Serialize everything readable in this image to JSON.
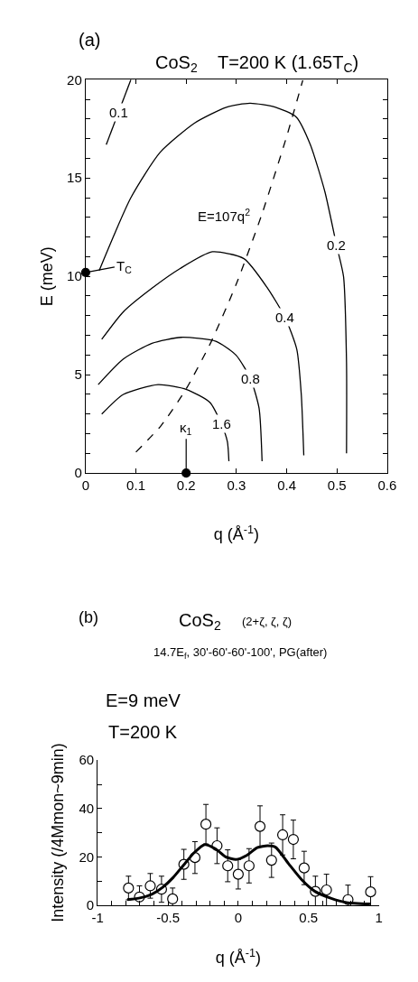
{
  "chart_data": [
    {
      "type": "line",
      "title": "CoS$_{2}$    T=200 K (1.65T$_{C}$)",
      "xlabel": "q (Å$^{-1}$)",
      "ylabel": "E (meV)",
      "annotations": [
        "(a)",
        {
          "text": "T$_{C}$",
          "x": 0,
          "y": 10.2
        },
        {
          "text": "κ$_{1}$",
          "x": 0.2,
          "y": 0
        }
      ],
      "series": [
        {
          "name": "0.1",
          "color": "#000000",
          "x": [
            0.041,
            0.09
          ],
          "values": [
            16.7,
            20.0
          ]
        },
        {
          "name": "0.2",
          "color": "#000000",
          "x": [
            0.027,
            0.09,
            0.148,
            0.217,
            0.28,
            0.327,
            0.378,
            0.419,
            0.447,
            0.476,
            0.499,
            0.513,
            0.519,
            0.519
          ],
          "values": [
            10.3,
            14.0,
            16.3,
            17.8,
            18.6,
            18.8,
            18.6,
            18.1,
            16.7,
            14.3,
            11.6,
            10.0,
            5.6,
            1.0
          ]
        },
        {
          "name": "0.4",
          "color": "#000000",
          "x": [
            0.032,
            0.075,
            0.132,
            0.188,
            0.252,
            0.315,
            0.362,
            0.397,
            0.42,
            0.429,
            0.434
          ],
          "values": [
            6.8,
            8.2,
            9.4,
            10.4,
            11.25,
            10.9,
            9.4,
            7.9,
            6.3,
            4.0,
            0.9
          ]
        },
        {
          "name": "0.8",
          "color": "#000000",
          "x": [
            0.025,
            0.075,
            0.132,
            0.19,
            0.259,
            0.299,
            0.328,
            0.345,
            0.351
          ],
          "values": [
            4.5,
            5.8,
            6.6,
            6.9,
            6.7,
            6.0,
            4.8,
            3.3,
            0.6
          ]
        },
        {
          "name": "1.6",
          "color": "#000000",
          "x": [
            0.032,
            0.075,
            0.144,
            0.201,
            0.247,
            0.27,
            0.282,
            0.285
          ],
          "values": [
            3.0,
            4.0,
            4.5,
            4.25,
            3.6,
            2.5,
            1.6,
            0.6
          ]
        },
        {
          "name": "E=107q$^{2}$",
          "color": "#000000",
          "line_style": "dashed",
          "x": [
            0.1,
            0.15,
            0.2,
            0.25,
            0.3,
            0.35,
            0.4,
            0.432
          ],
          "values": [
            1.07,
            2.41,
            4.28,
            6.69,
            9.63,
            13.11,
            17.12,
            19.97
          ]
        },
        {
          "type": "scatter",
          "marker": "circle",
          "color": "#000000",
          "x": [
            0,
            0.2
          ],
          "values": [
            10.2,
            0
          ]
        }
      ],
      "xlim": [
        0,
        0.6
      ],
      "xticks": [
        0,
        0.1,
        0.2,
        0.3,
        0.4,
        0.5,
        0.6
      ],
      "ylim": [
        0,
        20
      ],
      "yticks": [
        0,
        {
          "value": 1,
          "label": null
        },
        {
          "value": 2,
          "label": null
        },
        {
          "value": 3,
          "label": null
        },
        {
          "value": 4,
          "label": null
        },
        5,
        {
          "value": 6,
          "label": null
        },
        {
          "value": 7,
          "label": null
        },
        {
          "value": 8,
          "label": null
        },
        {
          "value": 9,
          "label": null
        },
        10,
        {
          "value": 11,
          "label": null
        },
        {
          "value": 12,
          "label": null
        },
        {
          "value": 13,
          "label": null
        },
        {
          "value": 14,
          "label": null
        },
        15,
        {
          "value": 16,
          "label": null
        },
        {
          "value": 17,
          "label": null
        },
        {
          "value": 18,
          "label": null
        },
        {
          "value": 19,
          "label": null
        },
        20
      ],
      "line_style": "solid",
      "marker": "none"
    },
    {
      "type": "scatter",
      "title": "CoS$_{2}$",
      "subtitle": "14.7E$_{f}$, 30'-60'-60'-100', PG(after)",
      "xlabel": "q (Å$^{-1}$)",
      "ylabel": "Intensity (/4Mmon~9min)",
      "annotations": [
        "(b)",
        "(2+ζ, ζ, ζ)",
        "E=9 meV",
        "T=200 K"
      ],
      "series": [
        {
          "color": "#000000",
          "marker": "circle",
          "x": [
            -0.781,
            -0.703,
            -0.626,
            -0.546,
            -0.467,
            -0.387,
            -0.308,
            -0.23,
            -0.151,
            -0.075,
            0,
            0.077,
            0.155,
            0.237,
            0.316,
            0.392,
            0.469,
            0.549,
            0.628,
            0.781,
            0.942
          ],
          "values": [
            7.1,
            3.4,
            8.0,
            6.6,
            2.6,
            16.9,
            19.7,
            33.5,
            24.6,
            16.3,
            12.8,
            16.3,
            32.6,
            18.6,
            29.1,
            27.2,
            15.4,
            5.7,
            6.3,
            2.3,
            5.5
          ],
          "errors": [
            4.9,
            4.6,
            5.1,
            5.4,
            4.5,
            6.2,
            6.6,
            8.2,
            7.4,
            6.6,
            6.1,
            7.1,
            8.5,
            7.1,
            8.3,
            8.0,
            6.9,
            6.3,
            6.5,
            6.0,
            6.3
          ]
        },
        {
          "type": "line",
          "color": "#000000",
          "marker": "none",
          "x": [
            -0.79,
            -0.707,
            -0.613,
            -0.538,
            -0.464,
            -0.389,
            -0.314,
            -0.239,
            -0.164,
            -0.09,
            -0.015,
            0.06,
            0.135,
            0.209,
            0.265,
            0.359,
            0.452,
            0.546,
            0.658,
            0.77,
            0.938
          ],
          "values": [
            2.3,
            2.9,
            4.6,
            7.4,
            11.4,
            16.6,
            21.7,
            25.1,
            23.4,
            20.0,
            18.9,
            20.6,
            23.8,
            24.6,
            24.0,
            17.1,
            10.5,
            5.7,
            2.9,
            1.1,
            0.5
          ]
        }
      ],
      "xlim": [
        -1,
        1
      ],
      "xticks": [
        -1,
        {
          "value": -0.9,
          "label": null
        },
        {
          "value": -0.8,
          "label": null
        },
        {
          "value": -0.7,
          "label": null
        },
        {
          "value": -0.6,
          "label": null
        },
        -0.5,
        {
          "value": -0.4,
          "label": null
        },
        {
          "value": -0.3,
          "label": null
        },
        {
          "value": -0.2,
          "label": null
        },
        {
          "value": -0.1,
          "label": null
        },
        0,
        {
          "value": 0.1,
          "label": null
        },
        {
          "value": 0.2,
          "label": null
        },
        {
          "value": 0.3,
          "label": null
        },
        {
          "value": 0.4,
          "label": null
        },
        0.5,
        {
          "value": 0.6,
          "label": null
        },
        {
          "value": 0.7,
          "label": null
        },
        {
          "value": 0.8,
          "label": null
        },
        {
          "value": 0.9,
          "label": null
        },
        1
      ],
      "ylim": [
        0,
        60
      ],
      "yticks": [
        0,
        {
          "value": 10,
          "label": null
        },
        20,
        {
          "value": 30,
          "label": null
        },
        40,
        {
          "value": 50,
          "label": null
        },
        60
      ]
    }
  ]
}
